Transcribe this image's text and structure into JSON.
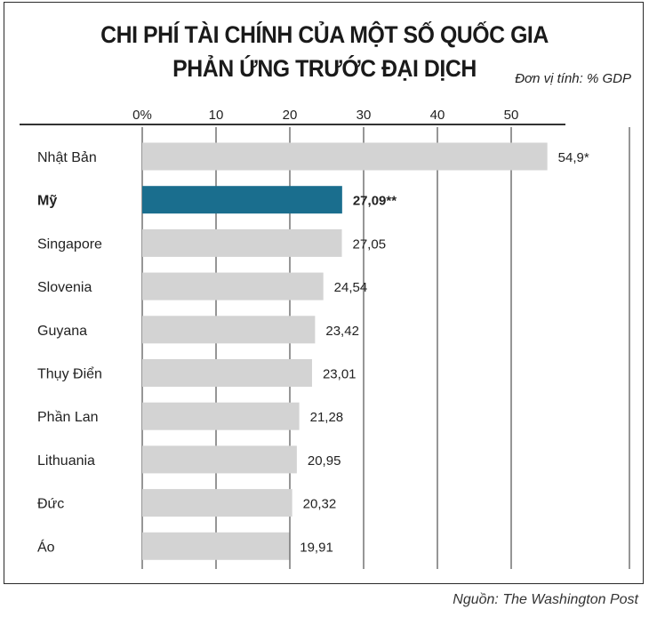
{
  "title_line1": "CHI PHÍ TÀI CHÍNH CỦA MỘT SỐ QUỐC GIA",
  "title_line2": "PHẢN ỨNG TRƯỚC ĐẠI DỊCH",
  "unit_note": "Đơn vị tính: % GDP",
  "source_note": "Nguồn: The Washington Post",
  "colors": {
    "bar": "#d3d3d3",
    "highlight": "#1a6e8e",
    "axis": "#333333"
  },
  "chart_data": {
    "type": "bar",
    "orientation": "horizontal",
    "categories": [
      "Nhật Bản",
      "Mỹ",
      "Singapore",
      "Slovenia",
      "Guyana",
      "Thụy Điển",
      "Phần Lan",
      "Lithuania",
      "Đức",
      "Áo"
    ],
    "values": [
      54.9,
      27.09,
      27.05,
      24.54,
      23.42,
      23.01,
      21.28,
      20.95,
      20.32,
      19.91
    ],
    "value_labels": [
      "54,9*",
      "27,09**",
      "27,05",
      "24,54",
      "23,42",
      "23,01",
      "21,28",
      "20,95",
      "20,32",
      "19,91"
    ],
    "highlight_index": 1,
    "x_ticks": [
      0,
      10,
      20,
      30,
      40,
      50
    ],
    "x_tick_labels": [
      "0%",
      "10",
      "20",
      "30",
      "40",
      "50"
    ],
    "xlim": [
      0,
      57
    ],
    "grid": true
  }
}
